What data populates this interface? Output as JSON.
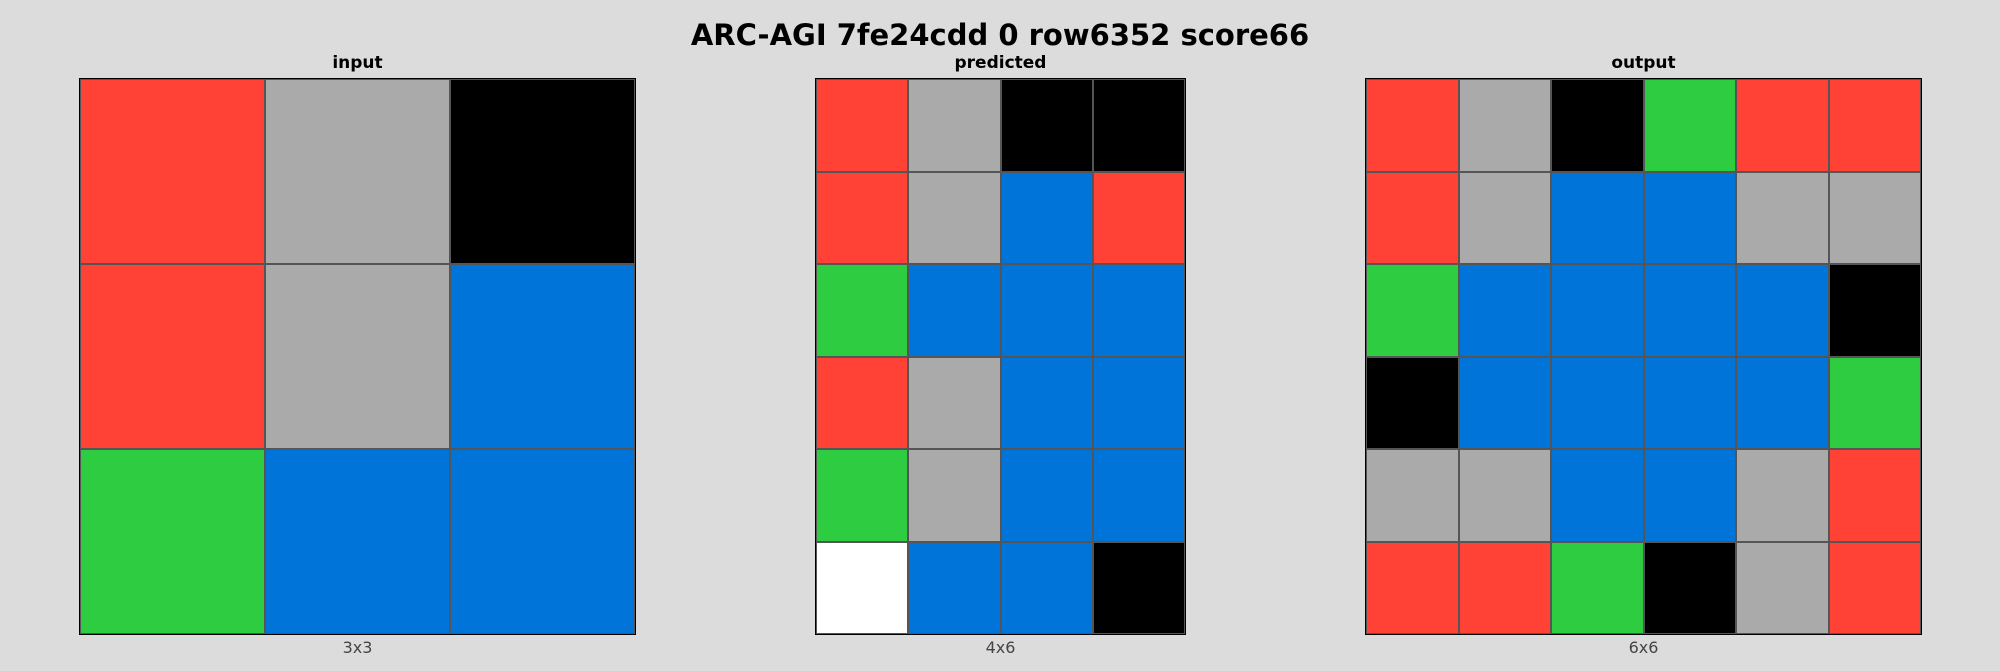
{
  "title": "ARC-AGI 7fe24cdd 0 row6352 score66",
  "palette": {
    "0": "#000000",
    "1": "#0074d9",
    "2": "#ff4136",
    "3": "#2ecc40",
    "5": "#aaaaaa",
    "w": "#ffffff"
  },
  "panels": [
    {
      "key": "input",
      "title": "input",
      "caption": "3x3",
      "grid": [
        [
          "2",
          "5",
          "0"
        ],
        [
          "2",
          "5",
          "1"
        ],
        [
          "3",
          "1",
          "1"
        ]
      ]
    },
    {
      "key": "predicted",
      "title": "predicted",
      "caption": "4x6",
      "grid": [
        [
          "2",
          "5",
          "0",
          "0"
        ],
        [
          "2",
          "5",
          "1",
          "2"
        ],
        [
          "3",
          "1",
          "1",
          "1"
        ],
        [
          "2",
          "5",
          "1",
          "1"
        ],
        [
          "3",
          "5",
          "1",
          "1"
        ],
        [
          "w",
          "1",
          "1",
          "0"
        ]
      ]
    },
    {
      "key": "output",
      "title": "output",
      "caption": "6x6",
      "grid": [
        [
          "2",
          "5",
          "0",
          "3",
          "2",
          "2"
        ],
        [
          "2",
          "5",
          "1",
          "1",
          "5",
          "5"
        ],
        [
          "3",
          "1",
          "1",
          "1",
          "1",
          "0"
        ],
        [
          "0",
          "1",
          "1",
          "1",
          "1",
          "3"
        ],
        [
          "5",
          "5",
          "1",
          "1",
          "5",
          "2"
        ],
        [
          "2",
          "2",
          "3",
          "0",
          "5",
          "2"
        ]
      ]
    }
  ]
}
